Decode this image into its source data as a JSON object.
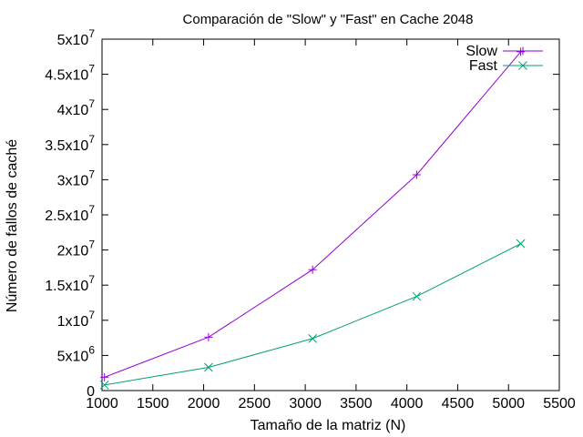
{
  "chart_data": {
    "type": "line",
    "title": "Comparación de \"Slow\" y \"Fast\" en Cache 2048",
    "xlabel": "Tamaño de la matriz (N)",
    "ylabel": "Número de fallos de caché",
    "xlim": [
      1000,
      5500
    ],
    "ylim": [
      0,
      50000000
    ],
    "x_ticks": [
      "1000",
      "1500",
      "2000",
      "2500",
      "3000",
      "3500",
      "4000",
      "4500",
      "5000",
      "5500"
    ],
    "y_ticks": [
      {
        "value": 0,
        "mant": "0",
        "exp": ""
      },
      {
        "value": 5000000,
        "mant": "5x10",
        "exp": "6"
      },
      {
        "value": 10000000,
        "mant": "1x10",
        "exp": "7"
      },
      {
        "value": 15000000,
        "mant": "1.5x10",
        "exp": "7"
      },
      {
        "value": 20000000,
        "mant": "2x10",
        "exp": "7"
      },
      {
        "value": 25000000,
        "mant": "2.5x10",
        "exp": "7"
      },
      {
        "value": 30000000,
        "mant": "3x10",
        "exp": "7"
      },
      {
        "value": 35000000,
        "mant": "3.5x10",
        "exp": "7"
      },
      {
        "value": 40000000,
        "mant": "4x10",
        "exp": "7"
      },
      {
        "value": 45000000,
        "mant": "4.5x10",
        "exp": "7"
      },
      {
        "value": 50000000,
        "mant": "5x10",
        "exp": "7"
      }
    ],
    "grid": false,
    "legend_position": "top-right",
    "series": [
      {
        "name": "Slow",
        "color": "#9400d3",
        "marker": "plus",
        "x": [
          1024,
          2048,
          3072,
          4096,
          5120
        ],
        "y": [
          1900000,
          7600000,
          17200000,
          30700000,
          48200000
        ]
      },
      {
        "name": "Fast",
        "color": "#009e73",
        "marker": "cross",
        "x": [
          1024,
          2048,
          3072,
          4096,
          5120
        ],
        "y": [
          800000,
          3300000,
          7400000,
          13400000,
          20900000
        ]
      }
    ]
  }
}
